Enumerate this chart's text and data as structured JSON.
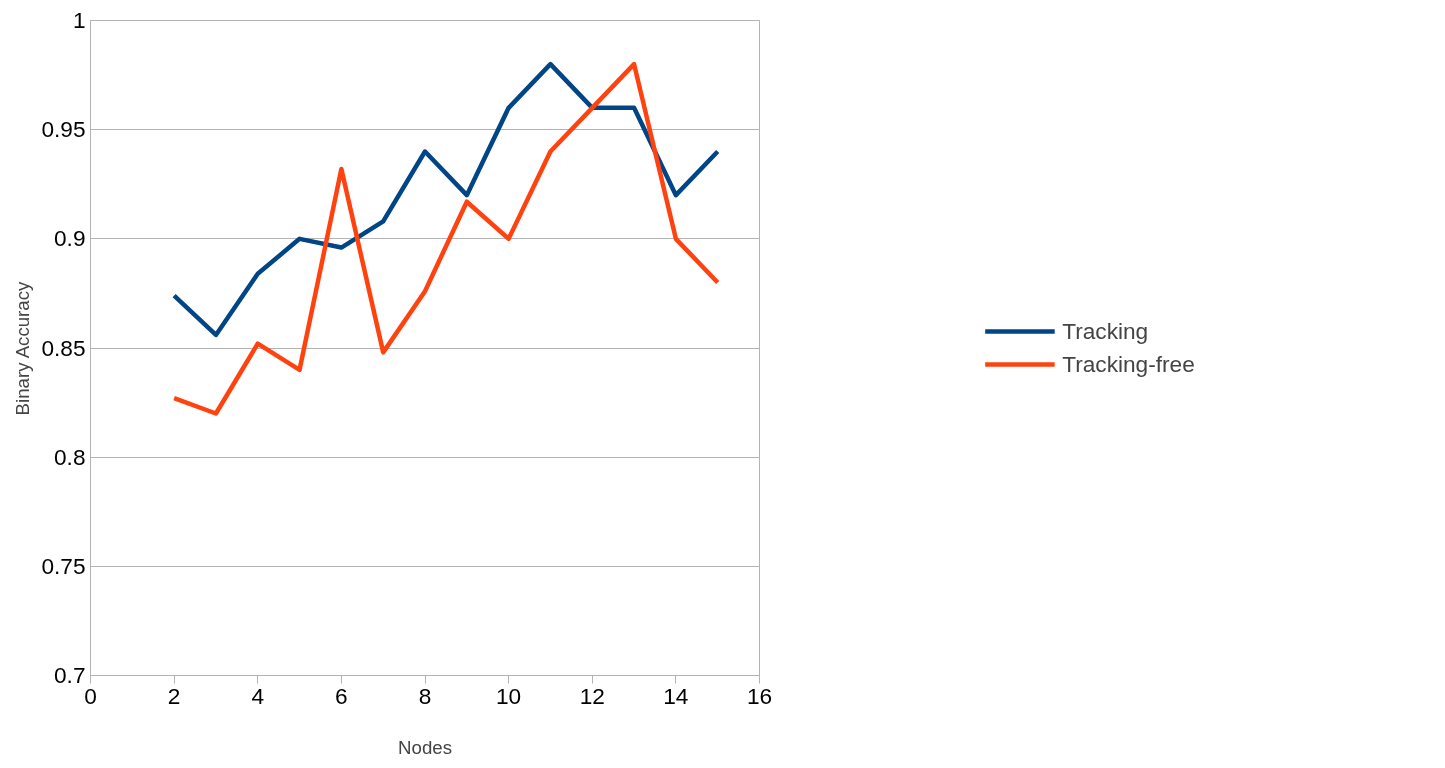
{
  "chart_data": {
    "type": "line",
    "xlabel": "Nodes",
    "ylabel": "Binary Accuracy",
    "x": [
      2,
      3,
      4,
      5,
      6,
      7,
      8,
      9,
      10,
      11,
      12,
      13,
      14,
      15
    ],
    "series": [
      {
        "name": "Tracking",
        "color": "#004586",
        "values": [
          0.874,
          0.856,
          0.884,
          0.9,
          0.896,
          0.908,
          0.94,
          0.92,
          0.96,
          0.98,
          0.96,
          0.96,
          0.92,
          0.94
        ]
      },
      {
        "name": "Tracking-free",
        "color": "#ff420e",
        "values": [
          0.827,
          0.82,
          0.852,
          0.84,
          0.932,
          0.848,
          0.876,
          0.917,
          0.9,
          0.94,
          0.96,
          0.98,
          0.9,
          0.88
        ]
      }
    ],
    "xlim": [
      0,
      16
    ],
    "xticks": [
      0,
      2,
      4,
      6,
      8,
      10,
      12,
      14,
      16
    ],
    "ylim": [
      0.7,
      1
    ],
    "yticks": [
      0.7,
      0.75,
      0.8,
      0.85,
      0.9,
      0.95,
      1
    ],
    "grid": "y",
    "legend": "right",
    "marker": "none",
    "line_style": "solid"
  }
}
